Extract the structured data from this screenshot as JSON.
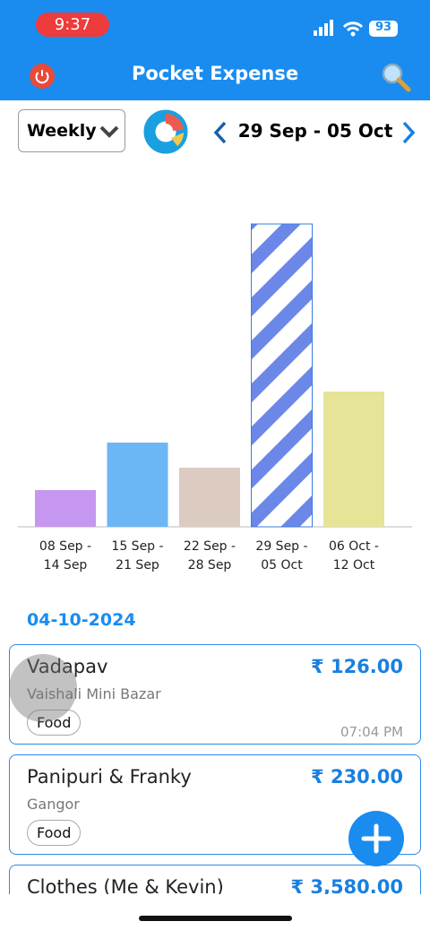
{
  "status_bar": {
    "time": "9:37",
    "battery": "93"
  },
  "header": {
    "title": "Pocket Expense"
  },
  "controls": {
    "period": "Weekly",
    "date_range": "29 Sep - 05 Oct"
  },
  "chart_data": {
    "type": "bar",
    "categories": [
      [
        "08 Sep -",
        "14 Sep"
      ],
      [
        "15 Sep -",
        "21 Sep"
      ],
      [
        "22 Sep -",
        "28 Sep"
      ],
      [
        "29 Sep -",
        "05 Oct"
      ],
      [
        "06 Oct -",
        "12 Oct"
      ]
    ],
    "values": [
      41,
      94,
      66,
      338,
      151
    ],
    "colors": [
      "#c597f0",
      "#6cb6f5",
      "#dccbc0",
      "#6b87e8",
      "#e6e497"
    ],
    "selected": 3
  },
  "transactions": {
    "date": "04-10-2024",
    "items": [
      {
        "name": "Vadapav",
        "store": "Vaishali Mini Bazar",
        "category": "Food",
        "amount": "₹ 126.00",
        "time": "07:04 PM"
      },
      {
        "name": "Panipuri & Franky",
        "store": "Gangor",
        "category": "Food",
        "amount": "₹ 230.00"
      },
      {
        "name": "Clothes (Me & Kevin)",
        "amount": "₹ 3,580.00"
      }
    ]
  }
}
